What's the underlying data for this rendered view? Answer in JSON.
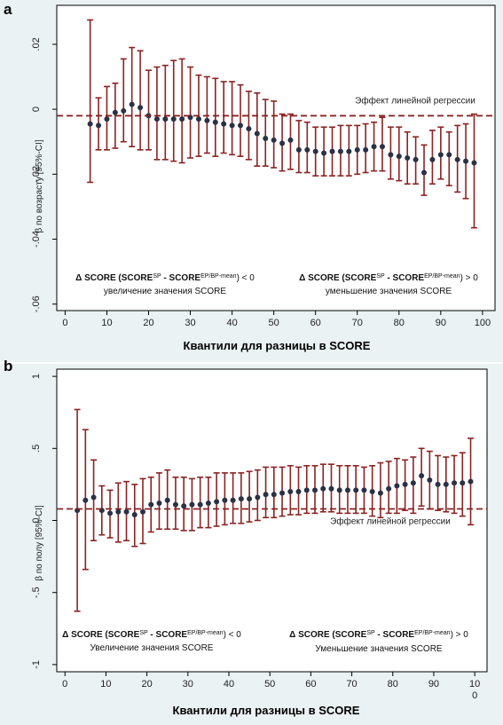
{
  "chart_data": [
    {
      "panel": "a",
      "type": "scatter",
      "error_bars": true,
      "xlabel": "Квантили для разницы в SCORE",
      "ylabel": "β по возрасту [95%-CI]",
      "xlim": [
        -2,
        103
      ],
      "ylim": [
        -0.062,
        0.032
      ],
      "xticks": [
        0,
        10,
        20,
        30,
        40,
        50,
        60,
        70,
        80,
        90,
        100
      ],
      "xtick_labels": [
        "0",
        "10",
        "20",
        "30",
        "40",
        "50",
        "60",
        "70",
        "80",
        "90",
        "100"
      ],
      "yticks": [
        0.02,
        0,
        -0.02,
        -0.04,
        -0.06
      ],
      "ytick_labels": [
        ".02",
        "0",
        "-.02",
        "-.04",
        "-.06"
      ],
      "reference_line": {
        "y": -0.002,
        "label": "Эффект линейной регрессии"
      },
      "annotation_left": {
        "line1_prefix": "Δ SCORE (SCORE",
        "line1_sup1": "SP",
        "line1_mid": " - SCORE",
        "line1_sup2": "EP/BP-mean",
        "line1_suffix": ") < 0",
        "line2": "увеличение значения SCORE"
      },
      "annotation_right": {
        "line1_prefix": "Δ SCORE (SCORE",
        "line1_sup1": "SP",
        "line1_mid": " - SCORE",
        "line1_sup2": "EP/BP-mean",
        "line1_suffix": ") > 0",
        "line2": "уменьшение значения SCORE"
      },
      "points": [
        {
          "x": 6,
          "y": -0.0045,
          "lo": -0.0225,
          "hi": 0.0275
        },
        {
          "x": 8,
          "y": -0.005,
          "lo": -0.0125,
          "hi": 0.0035
        },
        {
          "x": 10,
          "y": -0.003,
          "lo": -0.0125,
          "hi": 0.007
        },
        {
          "x": 12,
          "y": -0.001,
          "lo": -0.012,
          "hi": 0.008
        },
        {
          "x": 14,
          "y": -0.0005,
          "lo": -0.01,
          "hi": 0.0155
        },
        {
          "x": 16,
          "y": 0.0015,
          "lo": -0.0115,
          "hi": 0.019
        },
        {
          "x": 18,
          "y": 0.0005,
          "lo": -0.0125,
          "hi": 0.018
        },
        {
          "x": 20,
          "y": -0.002,
          "lo": -0.0125,
          "hi": 0.012
        },
        {
          "x": 22,
          "y": -0.003,
          "lo": -0.0155,
          "hi": 0.013
        },
        {
          "x": 24,
          "y": -0.003,
          "lo": -0.0155,
          "hi": 0.0135
        },
        {
          "x": 26,
          "y": -0.003,
          "lo": -0.016,
          "hi": 0.015
        },
        {
          "x": 28,
          "y": -0.003,
          "lo": -0.0165,
          "hi": 0.0155
        },
        {
          "x": 30,
          "y": -0.0025,
          "lo": -0.015,
          "hi": 0.013
        },
        {
          "x": 32,
          "y": -0.003,
          "lo": -0.0145,
          "hi": 0.0105
        },
        {
          "x": 34,
          "y": -0.0035,
          "lo": -0.0135,
          "hi": 0.01
        },
        {
          "x": 36,
          "y": -0.004,
          "lo": -0.0145,
          "hi": 0.0095
        },
        {
          "x": 38,
          "y": -0.0045,
          "lo": -0.0135,
          "hi": 0.0085
        },
        {
          "x": 40,
          "y": -0.005,
          "lo": -0.014,
          "hi": 0.0085
        },
        {
          "x": 42,
          "y": -0.005,
          "lo": -0.0145,
          "hi": 0.0075
        },
        {
          "x": 44,
          "y": -0.006,
          "lo": -0.0155,
          "hi": 0.0055
        },
        {
          "x": 46,
          "y": -0.0075,
          "lo": -0.0175,
          "hi": 0.005
        },
        {
          "x": 48,
          "y": -0.009,
          "lo": -0.0175,
          "hi": 0.003
        },
        {
          "x": 50,
          "y": -0.0095,
          "lo": -0.018,
          "hi": 0.0025
        },
        {
          "x": 52,
          "y": -0.0105,
          "lo": -0.019,
          "hi": -0.0015
        },
        {
          "x": 54,
          "y": -0.0095,
          "lo": -0.0185,
          "hi": -0.0015
        },
        {
          "x": 56,
          "y": -0.0125,
          "lo": -0.0195,
          "hi": -0.0035
        },
        {
          "x": 58,
          "y": -0.0125,
          "lo": -0.0195,
          "hi": -0.004
        },
        {
          "x": 60,
          "y": -0.013,
          "lo": -0.0205,
          "hi": -0.0055
        },
        {
          "x": 62,
          "y": -0.0135,
          "lo": -0.0205,
          "hi": -0.0055
        },
        {
          "x": 64,
          "y": -0.013,
          "lo": -0.0205,
          "hi": -0.0055
        },
        {
          "x": 66,
          "y": -0.013,
          "lo": -0.0205,
          "hi": -0.005
        },
        {
          "x": 68,
          "y": -0.013,
          "lo": -0.0205,
          "hi": -0.005
        },
        {
          "x": 70,
          "y": -0.0125,
          "lo": -0.02,
          "hi": -0.005
        },
        {
          "x": 72,
          "y": -0.0125,
          "lo": -0.0195,
          "hi": -0.0045
        },
        {
          "x": 74,
          "y": -0.0115,
          "lo": -0.019,
          "hi": -0.004
        },
        {
          "x": 76,
          "y": -0.0115,
          "lo": -0.019,
          "hi": -0.0025
        },
        {
          "x": 78,
          "y": -0.014,
          "lo": -0.0215,
          "hi": -0.0055
        },
        {
          "x": 80,
          "y": -0.0145,
          "lo": -0.022,
          "hi": -0.0055
        },
        {
          "x": 82,
          "y": -0.015,
          "lo": -0.023,
          "hi": -0.007
        },
        {
          "x": 84,
          "y": -0.0155,
          "lo": -0.023,
          "hi": -0.0085
        },
        {
          "x": 86,
          "y": -0.0195,
          "lo": -0.0265,
          "hi": -0.011
        },
        {
          "x": 88,
          "y": -0.0155,
          "lo": -0.023,
          "hi": -0.0065
        },
        {
          "x": 90,
          "y": -0.014,
          "lo": -0.0215,
          "hi": -0.0055
        },
        {
          "x": 92,
          "y": -0.014,
          "lo": -0.0235,
          "hi": -0.007
        },
        {
          "x": 94,
          "y": -0.0155,
          "lo": -0.0255,
          "hi": -0.005
        },
        {
          "x": 96,
          "y": -0.016,
          "lo": -0.0275,
          "hi": -0.0045
        },
        {
          "x": 98,
          "y": -0.0165,
          "lo": -0.0365,
          "hi": -0.0015
        }
      ]
    },
    {
      "panel": "b",
      "type": "scatter",
      "error_bars": true,
      "xlabel": "Квантили для разницы в SCORE",
      "ylabel": "β по полу [95%-CI]",
      "xlim": [
        -2,
        103
      ],
      "ylim": [
        -1.05,
        1.05
      ],
      "xticks": [
        0,
        10,
        20,
        30,
        40,
        50,
        60,
        70,
        80,
        90,
        100
      ],
      "xtick_labels": [
        "0",
        "10",
        "20",
        "30",
        "40",
        "50",
        "60",
        "70",
        "80",
        "90",
        "10\n0"
      ],
      "yticks": [
        1,
        0.5,
        0,
        -0.5,
        -1
      ],
      "ytick_labels": [
        "1",
        ".5",
        "0",
        "-.5",
        "-1"
      ],
      "reference_line": {
        "y": 0.08,
        "label": "Эффект линейной регрессии"
      },
      "annotation_left": {
        "line1_prefix": "Δ SCORE (SCORE",
        "line1_sup1": "SP",
        "line1_mid": " - SCORE",
        "line1_sup2": "EP/BP-mean",
        "line1_suffix": ") < 0",
        "line2": "Увеличение значения SCORE"
      },
      "annotation_right": {
        "line1_prefix": "Δ SCORE (SCORE",
        "line1_sup1": "SP",
        "line1_mid": " - SCORE",
        "line1_sup2": "EP/BP-mean",
        "line1_suffix": ") > 0",
        "line2": "Уменьшение значения SCORE"
      },
      "points": [
        {
          "x": 3,
          "y": 0.07,
          "lo": -0.63,
          "hi": 0.77
        },
        {
          "x": 5,
          "y": 0.14,
          "lo": -0.34,
          "hi": 0.63
        },
        {
          "x": 7,
          "y": 0.16,
          "lo": -0.14,
          "hi": 0.42
        },
        {
          "x": 9,
          "y": 0.07,
          "lo": -0.1,
          "hi": 0.24
        },
        {
          "x": 11,
          "y": 0.05,
          "lo": -0.12,
          "hi": 0.21
        },
        {
          "x": 13,
          "y": 0.06,
          "lo": -0.15,
          "hi": 0.26
        },
        {
          "x": 15,
          "y": 0.06,
          "lo": -0.14,
          "hi": 0.27
        },
        {
          "x": 17,
          "y": 0.04,
          "lo": -0.18,
          "hi": 0.25
        },
        {
          "x": 19,
          "y": 0.06,
          "lo": -0.16,
          "hi": 0.29
        },
        {
          "x": 21,
          "y": 0.11,
          "lo": -0.08,
          "hi": 0.3
        },
        {
          "x": 23,
          "y": 0.12,
          "lo": -0.06,
          "hi": 0.33
        },
        {
          "x": 25,
          "y": 0.14,
          "lo": -0.06,
          "hi": 0.35
        },
        {
          "x": 27,
          "y": 0.11,
          "lo": -0.06,
          "hi": 0.3
        },
        {
          "x": 29,
          "y": 0.1,
          "lo": -0.07,
          "hi": 0.3
        },
        {
          "x": 31,
          "y": 0.11,
          "lo": -0.07,
          "hi": 0.29
        },
        {
          "x": 33,
          "y": 0.11,
          "lo": -0.05,
          "hi": 0.3
        },
        {
          "x": 35,
          "y": 0.12,
          "lo": -0.05,
          "hi": 0.3
        },
        {
          "x": 37,
          "y": 0.13,
          "lo": -0.04,
          "hi": 0.33
        },
        {
          "x": 39,
          "y": 0.14,
          "lo": -0.03,
          "hi": 0.33
        },
        {
          "x": 41,
          "y": 0.14,
          "lo": -0.02,
          "hi": 0.33
        },
        {
          "x": 43,
          "y": 0.15,
          "lo": -0.02,
          "hi": 0.33
        },
        {
          "x": 45,
          "y": 0.15,
          "lo": -0.01,
          "hi": 0.34
        },
        {
          "x": 47,
          "y": 0.16,
          "lo": 0.0,
          "hi": 0.35
        },
        {
          "x": 49,
          "y": 0.18,
          "lo": 0.02,
          "hi": 0.37
        },
        {
          "x": 51,
          "y": 0.18,
          "lo": 0.02,
          "hi": 0.37
        },
        {
          "x": 53,
          "y": 0.19,
          "lo": 0.03,
          "hi": 0.37
        },
        {
          "x": 55,
          "y": 0.2,
          "lo": 0.04,
          "hi": 0.38
        },
        {
          "x": 57,
          "y": 0.2,
          "lo": 0.04,
          "hi": 0.37
        },
        {
          "x": 59,
          "y": 0.21,
          "lo": 0.05,
          "hi": 0.38
        },
        {
          "x": 61,
          "y": 0.21,
          "lo": 0.05,
          "hi": 0.38
        },
        {
          "x": 63,
          "y": 0.22,
          "lo": 0.06,
          "hi": 0.39
        },
        {
          "x": 65,
          "y": 0.22,
          "lo": 0.06,
          "hi": 0.39
        },
        {
          "x": 67,
          "y": 0.21,
          "lo": 0.05,
          "hi": 0.38
        },
        {
          "x": 69,
          "y": 0.21,
          "lo": 0.05,
          "hi": 0.38
        },
        {
          "x": 71,
          "y": 0.21,
          "lo": 0.05,
          "hi": 0.38
        },
        {
          "x": 73,
          "y": 0.21,
          "lo": 0.05,
          "hi": 0.37
        },
        {
          "x": 75,
          "y": 0.2,
          "lo": 0.03,
          "hi": 0.38
        },
        {
          "x": 77,
          "y": 0.19,
          "lo": 0.02,
          "hi": 0.4
        },
        {
          "x": 79,
          "y": 0.22,
          "lo": 0.05,
          "hi": 0.41
        },
        {
          "x": 81,
          "y": 0.24,
          "lo": 0.05,
          "hi": 0.43
        },
        {
          "x": 83,
          "y": 0.25,
          "lo": 0.07,
          "hi": 0.42
        },
        {
          "x": 85,
          "y": 0.26,
          "lo": 0.05,
          "hi": 0.44
        },
        {
          "x": 87,
          "y": 0.31,
          "lo": 0.1,
          "hi": 0.5
        },
        {
          "x": 89,
          "y": 0.28,
          "lo": 0.08,
          "hi": 0.48
        },
        {
          "x": 91,
          "y": 0.25,
          "lo": 0.07,
          "hi": 0.45
        },
        {
          "x": 93,
          "y": 0.25,
          "lo": 0.06,
          "hi": 0.44
        },
        {
          "x": 95,
          "y": 0.26,
          "lo": 0.05,
          "hi": 0.45
        },
        {
          "x": 97,
          "y": 0.26,
          "lo": 0.03,
          "hi": 0.47
        },
        {
          "x": 99,
          "y": 0.27,
          "lo": -0.03,
          "hi": 0.57
        }
      ]
    }
  ],
  "colors": {
    "error_bar": "#8b2323",
    "point": "#2b3145",
    "reference_line": "#8b2323",
    "panel_background": "#eaf2f3"
  }
}
